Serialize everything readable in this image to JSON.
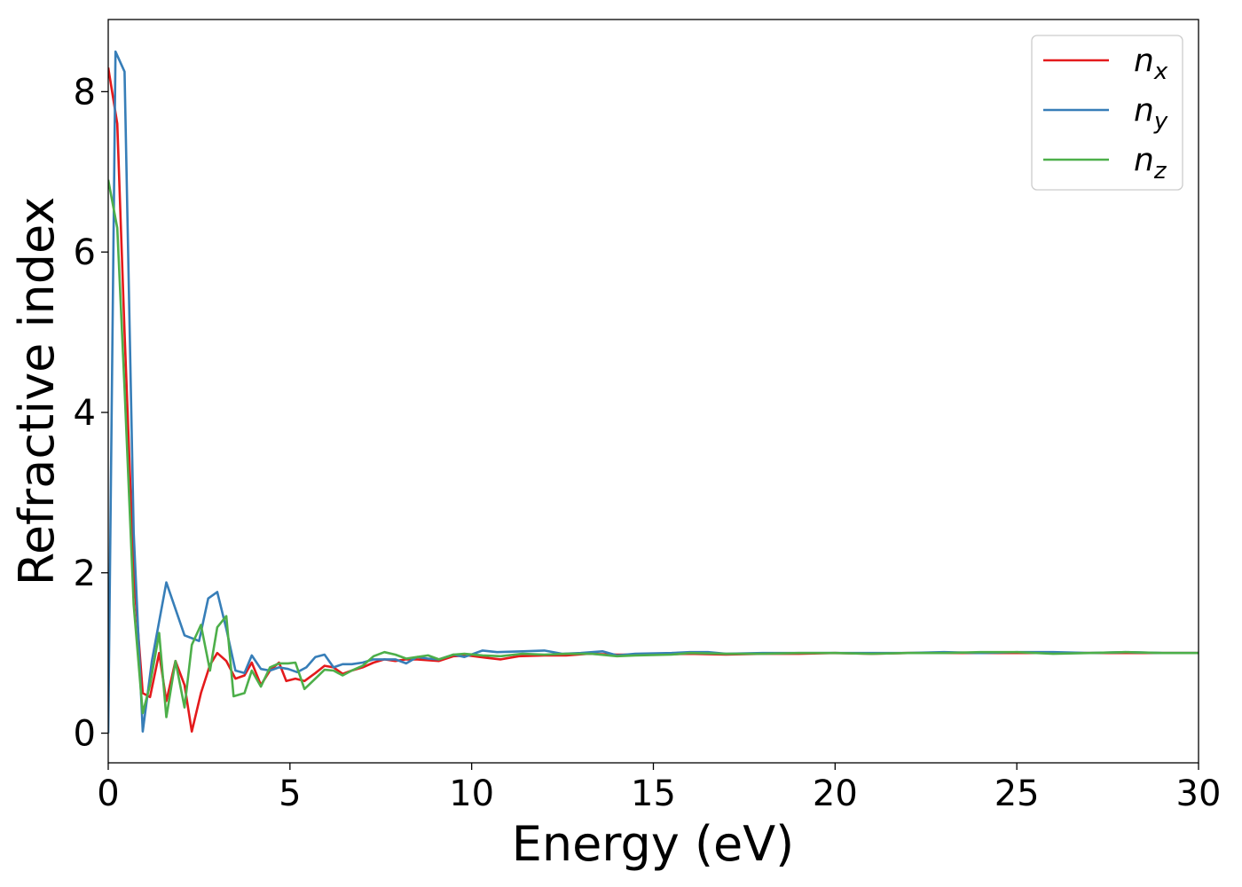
{
  "chart_data": {
    "type": "line",
    "title": "",
    "xlabel": "Energy (eV)",
    "ylabel": "Refractive index",
    "xlim": [
      0,
      30
    ],
    "ylim": [
      -0.37,
      8.9
    ],
    "x_ticks": [
      0,
      5,
      10,
      15,
      20,
      25,
      30
    ],
    "y_ticks": [
      0,
      2,
      4,
      6,
      8
    ],
    "grid": false,
    "legend_position": "top-right",
    "series": [
      {
        "name": "n",
        "subscript": "x",
        "color": "#e41a1c",
        "points": [
          [
            0,
            8.3
          ],
          [
            0.25,
            7.6
          ],
          [
            0.45,
            5.0
          ],
          [
            0.7,
            2.0
          ],
          [
            0.95,
            0.5
          ],
          [
            1.15,
            0.45
          ],
          [
            1.4,
            1.0
          ],
          [
            1.6,
            0.4
          ],
          [
            1.85,
            0.9
          ],
          [
            2.1,
            0.6
          ],
          [
            2.3,
            0.02
          ],
          [
            2.55,
            0.5
          ],
          [
            2.8,
            0.85
          ],
          [
            3.0,
            1.0
          ],
          [
            3.25,
            0.9
          ],
          [
            3.5,
            0.68
          ],
          [
            3.75,
            0.72
          ],
          [
            3.95,
            0.88
          ],
          [
            4.2,
            0.6
          ],
          [
            4.45,
            0.78
          ],
          [
            4.7,
            0.88
          ],
          [
            4.9,
            0.65
          ],
          [
            5.15,
            0.68
          ],
          [
            5.4,
            0.65
          ],
          [
            5.7,
            0.75
          ],
          [
            5.95,
            0.84
          ],
          [
            6.2,
            0.82
          ],
          [
            6.45,
            0.74
          ],
          [
            6.7,
            0.78
          ],
          [
            7.0,
            0.82
          ],
          [
            7.3,
            0.88
          ],
          [
            7.6,
            0.92
          ],
          [
            7.9,
            0.9
          ],
          [
            8.2,
            0.92
          ],
          [
            8.5,
            0.92
          ],
          [
            8.8,
            0.91
          ],
          [
            9.1,
            0.9
          ],
          [
            9.5,
            0.96
          ],
          [
            9.9,
            0.97
          ],
          [
            10.4,
            0.94
          ],
          [
            10.8,
            0.92
          ],
          [
            11.3,
            0.96
          ],
          [
            12.0,
            0.97
          ],
          [
            12.6,
            0.97
          ],
          [
            13.2,
            0.99
          ],
          [
            14.0,
            0.98
          ],
          [
            15.0,
            0.98
          ],
          [
            16.0,
            0.99
          ],
          [
            17.0,
            0.98
          ],
          [
            18.0,
            0.99
          ],
          [
            19.0,
            0.99
          ],
          [
            20.0,
            1.0
          ],
          [
            21.0,
            0.99
          ],
          [
            22.0,
            1.0
          ],
          [
            23.0,
            1.0
          ],
          [
            24.0,
            1.0
          ],
          [
            25.0,
            1.0
          ],
          [
            26.0,
            1.0
          ],
          [
            27.0,
            1.0
          ],
          [
            28.0,
            1.0
          ],
          [
            29.0,
            1.0
          ],
          [
            30.0,
            1.0
          ]
        ]
      },
      {
        "name": "n",
        "subscript": "y",
        "color": "#377eb8",
        "points": [
          [
            0,
            0.0
          ],
          [
            0.2,
            8.5
          ],
          [
            0.45,
            8.25
          ],
          [
            0.7,
            2.5
          ],
          [
            0.95,
            0.02
          ],
          [
            1.2,
            0.9
          ],
          [
            1.6,
            1.88
          ],
          [
            2.1,
            1.22
          ],
          [
            2.5,
            1.15
          ],
          [
            2.75,
            1.68
          ],
          [
            3.0,
            1.76
          ],
          [
            3.25,
            1.3
          ],
          [
            3.5,
            0.78
          ],
          [
            3.75,
            0.75
          ],
          [
            3.95,
            0.97
          ],
          [
            4.2,
            0.8
          ],
          [
            4.45,
            0.78
          ],
          [
            4.7,
            0.82
          ],
          [
            4.95,
            0.8
          ],
          [
            5.2,
            0.76
          ],
          [
            5.45,
            0.82
          ],
          [
            5.7,
            0.95
          ],
          [
            5.95,
            0.98
          ],
          [
            6.2,
            0.82
          ],
          [
            6.45,
            0.86
          ],
          [
            6.7,
            0.86
          ],
          [
            7.0,
            0.88
          ],
          [
            7.3,
            0.92
          ],
          [
            7.6,
            0.92
          ],
          [
            7.9,
            0.92
          ],
          [
            8.2,
            0.87
          ],
          [
            8.5,
            0.95
          ],
          [
            8.8,
            0.93
          ],
          [
            9.1,
            0.92
          ],
          [
            9.5,
            0.98
          ],
          [
            9.8,
            0.95
          ],
          [
            10.3,
            1.03
          ],
          [
            10.7,
            1.01
          ],
          [
            11.4,
            1.02
          ],
          [
            12.0,
            1.03
          ],
          [
            12.5,
            0.99
          ],
          [
            13.0,
            1.0
          ],
          [
            13.6,
            1.02
          ],
          [
            14.0,
            0.97
          ],
          [
            14.5,
            0.99
          ],
          [
            15.5,
            1.0
          ],
          [
            16.0,
            1.01
          ],
          [
            16.5,
            1.01
          ],
          [
            17.0,
            0.99
          ],
          [
            18.0,
            1.0
          ],
          [
            19.0,
            1.0
          ],
          [
            20.0,
            1.0
          ],
          [
            21.0,
            1.0
          ],
          [
            22.0,
            1.0
          ],
          [
            23.0,
            1.01
          ],
          [
            24.0,
            1.0
          ],
          [
            25.0,
            1.01
          ],
          [
            26.0,
            1.01
          ],
          [
            27.0,
            1.0
          ],
          [
            28.0,
            1.01
          ],
          [
            29.0,
            1.0
          ],
          [
            30.0,
            1.0
          ]
        ]
      },
      {
        "name": "n",
        "subscript": "z",
        "color": "#4daf4a",
        "points": [
          [
            0,
            6.9
          ],
          [
            0.25,
            6.3
          ],
          [
            0.45,
            4.3
          ],
          [
            0.7,
            1.6
          ],
          [
            0.95,
            0.25
          ],
          [
            1.15,
            0.6
          ],
          [
            1.4,
            1.25
          ],
          [
            1.6,
            0.2
          ],
          [
            1.85,
            0.9
          ],
          [
            2.1,
            0.32
          ],
          [
            2.3,
            1.1
          ],
          [
            2.55,
            1.35
          ],
          [
            2.8,
            0.78
          ],
          [
            3.0,
            1.32
          ],
          [
            3.25,
            1.46
          ],
          [
            3.45,
            0.46
          ],
          [
            3.75,
            0.5
          ],
          [
            3.95,
            0.78
          ],
          [
            4.2,
            0.58
          ],
          [
            4.45,
            0.82
          ],
          [
            4.7,
            0.87
          ],
          [
            4.95,
            0.87
          ],
          [
            5.15,
            0.88
          ],
          [
            5.4,
            0.55
          ],
          [
            5.7,
            0.68
          ],
          [
            5.95,
            0.79
          ],
          [
            6.2,
            0.78
          ],
          [
            6.45,
            0.72
          ],
          [
            6.7,
            0.78
          ],
          [
            7.0,
            0.84
          ],
          [
            7.3,
            0.96
          ],
          [
            7.6,
            1.01
          ],
          [
            7.9,
            0.98
          ],
          [
            8.2,
            0.93
          ],
          [
            8.5,
            0.95
          ],
          [
            8.8,
            0.97
          ],
          [
            9.1,
            0.92
          ],
          [
            9.5,
            0.98
          ],
          [
            9.8,
            0.99
          ],
          [
            10.3,
            0.97
          ],
          [
            10.8,
            0.96
          ],
          [
            11.4,
            0.99
          ],
          [
            12.0,
            0.98
          ],
          [
            12.6,
            0.99
          ],
          [
            13.3,
            0.99
          ],
          [
            14.0,
            0.96
          ],
          [
            14.5,
            0.97
          ],
          [
            15.5,
            0.98
          ],
          [
            16.0,
            1.0
          ],
          [
            17.0,
            0.99
          ],
          [
            18.0,
            0.99
          ],
          [
            19.0,
            1.0
          ],
          [
            20.0,
            1.0
          ],
          [
            21.0,
            0.99
          ],
          [
            22.0,
            1.0
          ],
          [
            23.0,
            1.0
          ],
          [
            24.0,
            1.01
          ],
          [
            25.0,
            1.01
          ],
          [
            26.0,
            0.99
          ],
          [
            27.0,
            1.0
          ],
          [
            28.0,
            1.01
          ],
          [
            29.0,
            1.0
          ],
          [
            30.0,
            1.0
          ]
        ]
      }
    ]
  }
}
